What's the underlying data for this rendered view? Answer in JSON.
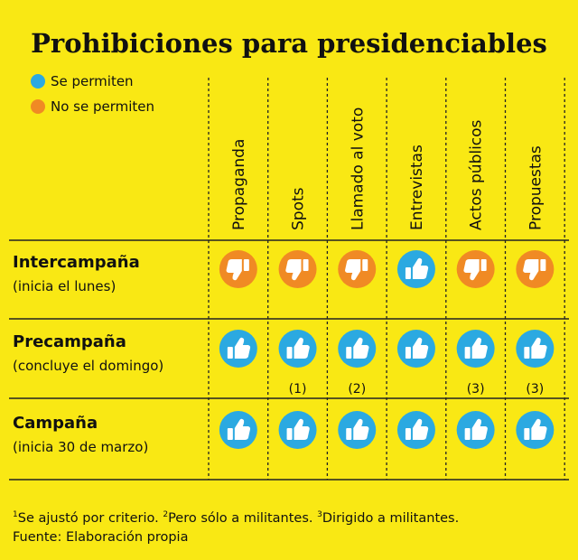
{
  "header": {
    "title": "Prohibiciones para presidenciables"
  },
  "legend": [
    {
      "label": "Se permiten",
      "color": "#2ba9e1"
    },
    {
      "label": "No se permiten",
      "color": "#f08a24"
    }
  ],
  "columns": [
    "Propaganda",
    "Spots",
    "Llamado al voto",
    "Entrevistas",
    "Actos públicos",
    "Propuestas"
  ],
  "rows": [
    {
      "label": "Intercampaña",
      "sublabel": "(inicia el lunes)",
      "cells": [
        {
          "allowed": false
        },
        {
          "allowed": false
        },
        {
          "allowed": false
        },
        {
          "allowed": true
        },
        {
          "allowed": false
        },
        {
          "allowed": false
        }
      ]
    },
    {
      "label": "Precampaña",
      "sublabel": "(concluye el domingo)",
      "cells": [
        {
          "allowed": true
        },
        {
          "allowed": true,
          "note": "(1)"
        },
        {
          "allowed": true,
          "note": "(2)"
        },
        {
          "allowed": true
        },
        {
          "allowed": true,
          "note": "(3)"
        },
        {
          "allowed": true,
          "note": "(3)"
        }
      ]
    },
    {
      "label": "Campaña",
      "sublabel": "(inicia 30 de marzo)",
      "cells": [
        {
          "allowed": true
        },
        {
          "allowed": true
        },
        {
          "allowed": true
        },
        {
          "allowed": true
        },
        {
          "allowed": true
        },
        {
          "allowed": true
        }
      ]
    }
  ],
  "footnotes": [
    {
      "mark": "1",
      "text": "Se ajustó por criterio. "
    },
    {
      "mark": "2",
      "text": "Pero sólo a militantes. "
    },
    {
      "mark": "3",
      "text": "Dirigido a militantes."
    }
  ],
  "source": "Fuente: Elaboración propia"
}
